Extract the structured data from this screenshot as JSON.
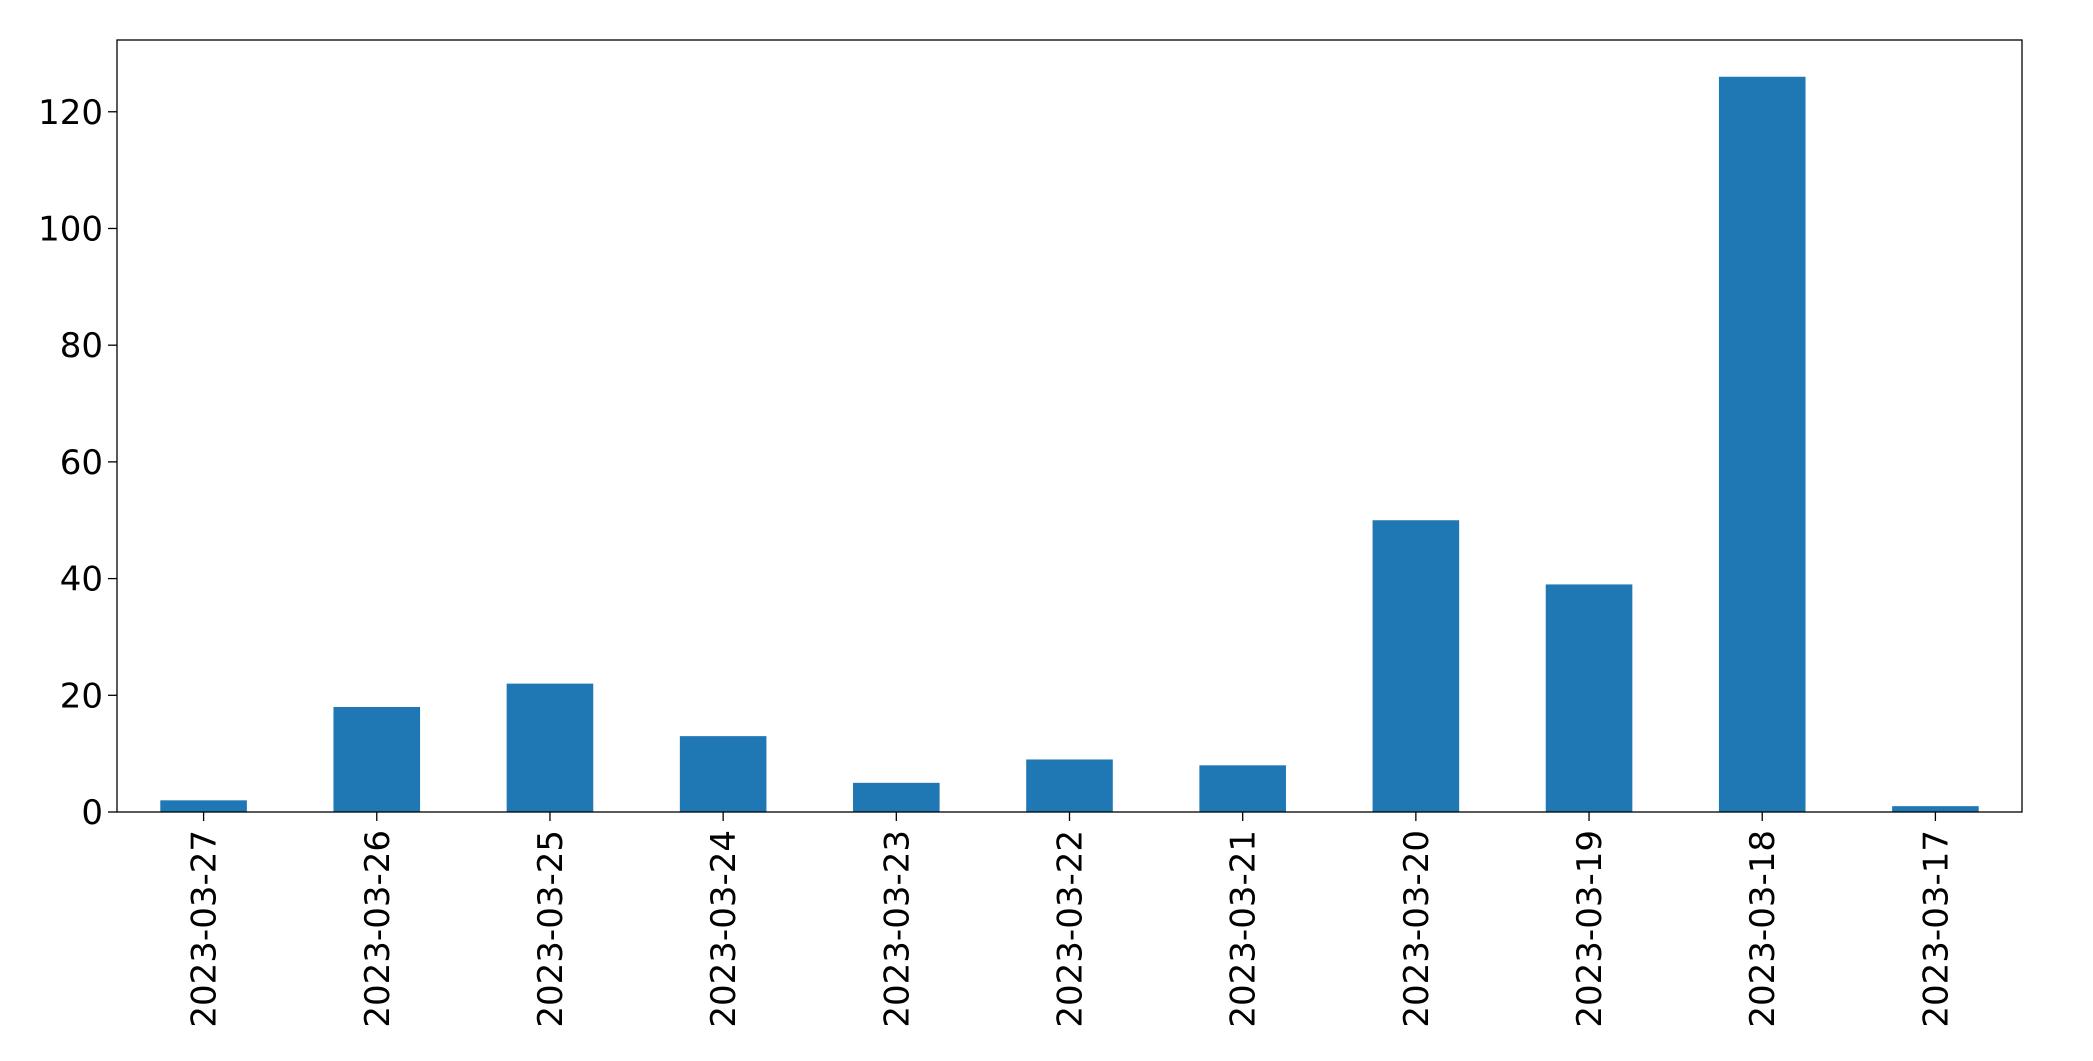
{
  "chart_data": {
    "type": "bar",
    "title": "",
    "xlabel": "",
    "ylabel": "",
    "categories": [
      "2023-03-27",
      "2023-03-26",
      "2023-03-25",
      "2023-03-24",
      "2023-03-23",
      "2023-03-22",
      "2023-03-21",
      "2023-03-20",
      "2023-03-19",
      "2023-03-18",
      "2023-03-17"
    ],
    "values": [
      2,
      18,
      22,
      13,
      5,
      9,
      8,
      50,
      39,
      126,
      1
    ],
    "ylim": [
      0,
      132.3
    ],
    "yticks": [
      0,
      20,
      40,
      60,
      80,
      100,
      120
    ],
    "grid": false,
    "legend": "none",
    "bar_color": "#1f77b4",
    "x_tick_rotation": "vertical"
  }
}
